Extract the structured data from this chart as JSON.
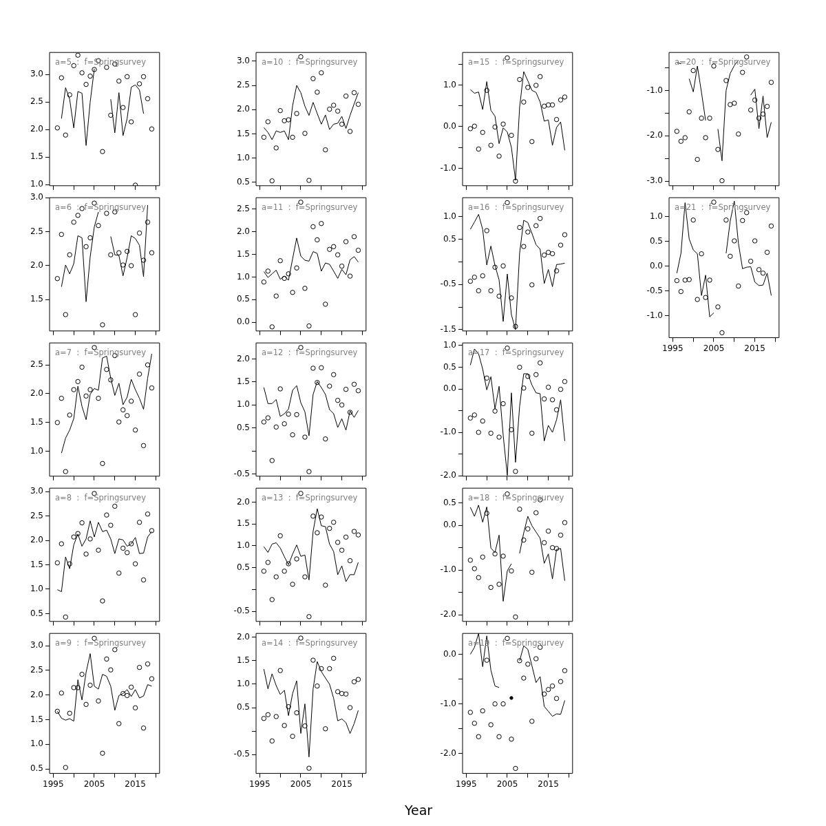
{
  "chart_data": [
    {
      "type": "scatter",
      "annotations": [
        "a=5  :  f=Springsurvey"
      ],
      "x": [
        1996,
        1997,
        1998,
        1999,
        2000,
        2001,
        2002,
        2003,
        2004,
        2005,
        2006,
        2007,
        2008,
        2009,
        2010,
        2011,
        2012,
        2013,
        2014,
        2015,
        2016,
        2017,
        2018,
        2019
      ],
      "xlim": [
        1994.1,
        2020.9
      ],
      "xticks": [
        1995,
        {
          "value": 2000,
          "label": null
        },
        2005,
        {
          "value": 2010,
          "label": null
        },
        2015,
        {
          "value": 2020,
          "label": null
        }
      ],
      "ylim": [
        0.98,
        3.4
      ],
      "yticks": [
        {
          "value": 1,
          "label": "1.0"
        },
        1.5,
        {
          "value": 2,
          "label": "2.0"
        },
        2.5,
        {
          "value": 3,
          "label": "3.0"
        }
      ],
      "tick_labels": "y",
      "marker": "circle",
      "series": [
        {
          "color": "#000000",
          "values": [
            2.03,
            2.94,
            1.9,
            2.63,
            3.16,
            3.35,
            3.03,
            2.82,
            2.97,
            3.09,
            3.25,
            1.6,
            3.13,
            2.26,
            3.19,
            2.88,
            2.4,
            2.96,
            2.14,
            0.99,
            2.83,
            2.96,
            2.56,
            2.01
          ]
        },
        {
          "type": "line",
          "color": "#000000",
          "marker": "none",
          "values": [
            null,
            2.2,
            2.76,
            2.55,
            2.03,
            2.69,
            2.66,
            1.71,
            2.5,
            3.1,
            null,
            null,
            null,
            2.55,
            1.94,
            2.67,
            1.89,
            2.2,
            2.77,
            2.81,
            2.72,
            2.29,
            null,
            null
          ]
        }
      ]
    },
    {
      "type": "scatter",
      "annotations": [
        "a=6  :  f=Springsurvey"
      ],
      "x": [
        1996,
        1997,
        1998,
        1999,
        2000,
        2001,
        2002,
        2003,
        2004,
        2005,
        2006,
        2007,
        2008,
        2009,
        2010,
        2011,
        2012,
        2013,
        2014,
        2015,
        2016,
        2017,
        2018,
        2019
      ],
      "xlim": [
        1994.1,
        2020.9
      ],
      "xticks": [
        1995,
        {
          "value": 2000,
          "label": null
        },
        2005,
        {
          "value": 2010,
          "label": null
        },
        2015,
        {
          "value": 2020,
          "label": null
        }
      ],
      "ylim": [
        1.04,
        3.0
      ],
      "yticks": [
        1.5,
        {
          "value": 2,
          "label": "2.0"
        },
        2.5,
        {
          "value": 3,
          "label": "3.0"
        }
      ],
      "tick_labels": "y",
      "marker": "circle",
      "series": [
        {
          "color": "#000000",
          "values": [
            1.81,
            2.46,
            1.28,
            2.16,
            2.64,
            2.74,
            2.84,
            2.28,
            2.41,
            2.92,
            2.59,
            1.13,
            2.77,
            2.16,
            2.79,
            2.19,
            2.01,
            2.21,
            2.0,
            1.28,
            2.48,
            2.08,
            2.64,
            2.19
          ]
        },
        {
          "type": "line",
          "color": "#000000",
          "marker": "none",
          "values": [
            null,
            1.69,
            2.01,
            1.88,
            2.03,
            2.44,
            2.41,
            1.47,
            2.13,
            2.57,
            2.79,
            null,
            null,
            2.43,
            2.16,
            2.15,
            1.85,
            2.12,
            2.44,
            2.4,
            2.3,
            1.84,
            2.89,
            null
          ]
        }
      ]
    },
    {
      "type": "scatter",
      "annotations": [
        "a=7  :  f=Springsurvey"
      ],
      "x": [
        1996,
        1997,
        1998,
        1999,
        2000,
        2001,
        2002,
        2003,
        2004,
        2005,
        2006,
        2007,
        2008,
        2009,
        2010,
        2011,
        2012,
        2013,
        2014,
        2015,
        2016,
        2017,
        2018,
        2019
      ],
      "xlim": [
        1994.1,
        2020.9
      ],
      "xticks": [
        1995,
        {
          "value": 2000,
          "label": null
        },
        2005,
        {
          "value": 2010,
          "label": null
        },
        2015,
        {
          "value": 2020,
          "label": null
        }
      ],
      "ylim": [
        0.57,
        2.88
      ],
      "yticks": [
        {
          "value": 1,
          "label": "1.0"
        },
        1.5,
        {
          "value": 2,
          "label": "2.0"
        },
        2.5
      ],
      "tick_labels": "y",
      "marker": "circle",
      "series": [
        {
          "color": "#000000",
          "values": [
            1.5,
            1.92,
            0.65,
            1.63,
            2.07,
            2.21,
            2.46,
            1.96,
            2.07,
            2.8,
            1.92,
            0.79,
            2.42,
            2.24,
            2.66,
            1.51,
            1.72,
            1.62,
            1.87,
            1.37,
            2.34,
            1.1,
            2.5,
            2.1
          ]
        },
        {
          "type": "line",
          "color": "#000000",
          "marker": "none",
          "values": [
            null,
            0.97,
            1.23,
            1.37,
            1.57,
            2.13,
            1.78,
            1.55,
            1.99,
            2.09,
            2.06,
            2.62,
            2.65,
            2.27,
            1.97,
            2.18,
            1.81,
            1.94,
            2.25,
            2.07,
            1.92,
            1.73,
            2.27,
            2.69
          ]
        }
      ]
    },
    {
      "type": "scatter",
      "annotations": [
        "a=8  :  f=Springsurvey"
      ],
      "x": [
        1996,
        1997,
        1998,
        1999,
        2000,
        2001,
        2002,
        2003,
        2004,
        2005,
        2006,
        2007,
        2008,
        2009,
        2010,
        2011,
        2012,
        2013,
        2014,
        2015,
        2016,
        2017,
        2018,
        2019
      ],
      "xlim": [
        1994.1,
        2020.9
      ],
      "xticks": [
        1995,
        {
          "value": 2000,
          "label": null
        },
        2005,
        {
          "value": 2010,
          "label": null
        },
        2015,
        {
          "value": 2020,
          "label": null
        }
      ],
      "ylim": [
        0.34,
        3.07
      ],
      "yticks": [
        0.5,
        {
          "value": 1,
          "label": "1.0"
        },
        1.5,
        {
          "value": 2,
          "label": "2.0"
        },
        2.5,
        {
          "value": 3,
          "label": "3.0"
        }
      ],
      "tick_labels": "y",
      "marker": "circle",
      "series": [
        {
          "color": "#000000",
          "values": [
            1.54,
            1.93,
            0.43,
            1.52,
            2.07,
            2.14,
            2.36,
            1.72,
            2.03,
            2.96,
            1.8,
            0.76,
            2.52,
            2.31,
            2.7,
            1.33,
            1.84,
            1.75,
            1.93,
            1.52,
            2.37,
            1.19,
            2.54,
            2.2
          ]
        },
        {
          "type": "line",
          "color": "#000000",
          "marker": "none",
          "values": [
            0.99,
            0.95,
            1.66,
            1.42,
            1.91,
            2.13,
            1.88,
            2.03,
            2.4,
            2.07,
            2.37,
            2.18,
            2.21,
            2.03,
            1.73,
            2.03,
            2.01,
            1.88,
            1.93,
            2.06,
            1.73,
            1.74,
            2.07,
            2.18
          ]
        }
      ]
    },
    {
      "type": "scatter",
      "annotations": [
        "a=9  :  f=Springsurvey"
      ],
      "x": [
        1996,
        1997,
        1998,
        1999,
        2000,
        2001,
        2002,
        2003,
        2004,
        2005,
        2006,
        2007,
        2008,
        2009,
        2010,
        2011,
        2012,
        2013,
        2014,
        2015,
        2016,
        2017,
        2018,
        2019
      ],
      "xlim": [
        1994.1,
        2020.9
      ],
      "xticks": [
        1995,
        {
          "value": 2000,
          "label": null
        },
        2005,
        {
          "value": 2010,
          "label": null
        },
        2015,
        {
          "value": 2020,
          "label": null
        }
      ],
      "ylim": [
        0.41,
        3.25
      ],
      "yticks": [
        0.5,
        {
          "value": 1,
          "label": "1.0"
        },
        1.5,
        {
          "value": 2,
          "label": "2.0"
        },
        2.5,
        {
          "value": 3,
          "label": "3.0"
        }
      ],
      "marker": "circle",
      "series": [
        {
          "color": "#000000",
          "values": [
            1.67,
            2.04,
            0.53,
            1.63,
            2.15,
            2.15,
            2.42,
            1.81,
            2.2,
            3.15,
            1.88,
            0.82,
            2.73,
            2.51,
            2.92,
            1.42,
            2.03,
            1.99,
            2.16,
            1.74,
            2.56,
            1.33,
            2.63,
            2.33
          ]
        },
        {
          "type": "line",
          "color": "#000000",
          "marker": "none",
          "values": [
            1.67,
            1.53,
            1.49,
            1.52,
            1.47,
            2.31,
            1.9,
            2.46,
            2.84,
            2.18,
            2.12,
            2.42,
            2.38,
            2.18,
            1.69,
            1.99,
            2.03,
            2.11,
            1.97,
            2.11,
            1.94,
            1.98,
            2.21,
            2.18
          ]
        }
      ]
    },
    {
      "type": "scatter",
      "annotations": [
        "a=10  :  f=Springsurvey"
      ],
      "x": [
        1996,
        1997,
        1998,
        1999,
        2000,
        2001,
        2002,
        2003,
        2004,
        2005,
        2006,
        2007,
        2008,
        2009,
        2010,
        2011,
        2012,
        2013,
        2014,
        2015,
        2016,
        2017,
        2018,
        2019
      ],
      "xlim": [
        1994.1,
        2020.9
      ],
      "xticks": [
        1995,
        {
          "value": 2000,
          "label": null
        },
        2005,
        {
          "value": 2010,
          "label": null
        },
        2015,
        {
          "value": 2020,
          "label": null
        }
      ],
      "ylim": [
        0.43,
        3.18
      ],
      "yticks": [
        0.5,
        {
          "value": 1,
          "label": "1.0"
        },
        1.5,
        {
          "value": 2,
          "label": "2.0"
        },
        2.5,
        {
          "value": 3,
          "label": "3.0"
        }
      ],
      "tick_labels": "y",
      "marker": "circle",
      "series": [
        {
          "color": "#000000",
          "values": [
            1.43,
            1.75,
            0.53,
            1.21,
            1.98,
            1.77,
            1.79,
            1.43,
            1.92,
            3.09,
            1.51,
            0.54,
            2.64,
            2.36,
            2.76,
            1.17,
            2.01,
            2.09,
            1.97,
            1.7,
            2.28,
            1.55,
            2.35,
            2.11
          ]
        },
        {
          "type": "line",
          "color": "#000000",
          "marker": "none",
          "values": [
            1.63,
            1.53,
            1.38,
            1.56,
            1.53,
            1.56,
            1.38,
            2.08,
            2.5,
            2.35,
            2.07,
            1.88,
            2.15,
            1.92,
            1.7,
            1.89,
            1.59,
            1.7,
            1.72,
            1.86,
            1.61,
            1.88,
            2.12,
            2.35
          ]
        }
      ]
    },
    {
      "type": "scatter",
      "annotations": [
        "a=11  :  f=Springsurvey"
      ],
      "x": [
        1996,
        1997,
        1998,
        1999,
        2000,
        2001,
        2002,
        2003,
        2004,
        2005,
        2006,
        2007,
        2008,
        2009,
        2010,
        2011,
        2012,
        2013,
        2014,
        2015,
        2016,
        2017,
        2018,
        2019
      ],
      "xlim": [
        1994.1,
        2020.9
      ],
      "xticks": [
        1995,
        {
          "value": 2000,
          "label": null
        },
        2005,
        {
          "value": 2010,
          "label": null
        },
        2015,
        {
          "value": 2020,
          "label": null
        }
      ],
      "ylim": [
        -0.19,
        2.75
      ],
      "yticks": [
        {
          "value": 0,
          "label": "0.0"
        },
        0.5,
        {
          "value": 1,
          "label": "1.0"
        },
        1.5,
        {
          "value": 2,
          "label": "2.0"
        },
        2.5
      ],
      "tick_labels": "y",
      "marker": "circle",
      "series": [
        {
          "color": "#000000",
          "values": [
            0.89,
            1.13,
            -0.1,
            0.58,
            1.36,
            0.97,
            1.07,
            0.66,
            1.2,
            2.65,
            0.75,
            -0.08,
            2.11,
            1.82,
            2.18,
            0.4,
            1.61,
            1.67,
            1.49,
            1.24,
            1.78,
            1.02,
            1.89,
            1.59
          ]
        },
        {
          "type": "line",
          "color": "#000000",
          "marker": "none",
          "values": [
            1.12,
            0.99,
            1.07,
            1.15,
            0.95,
            1.02,
            0.93,
            1.4,
            1.86,
            1.46,
            1.37,
            1.35,
            1.56,
            1.52,
            1.13,
            1.31,
            1.28,
            1.13,
            0.97,
            1.17,
            1.05,
            1.38,
            1.45,
            1.33
          ]
        }
      ]
    },
    {
      "type": "scatter",
      "annotations": [
        "a=12  :  f=Springsurvey"
      ],
      "x": [
        1996,
        1997,
        1998,
        1999,
        2000,
        2001,
        2002,
        2003,
        2004,
        2005,
        2006,
        2007,
        2008,
        2009,
        2010,
        2011,
        2012,
        2013,
        2014,
        2015,
        2016,
        2017,
        2018,
        2019
      ],
      "xlim": [
        1994.1,
        2020.9
      ],
      "xticks": [
        1995,
        {
          "value": 2000,
          "label": null
        },
        2005,
        {
          "value": 2010,
          "label": null
        },
        2015,
        {
          "value": 2020,
          "label": null
        }
      ],
      "ylim": [
        -0.55,
        2.35
      ],
      "yticks": [
        -0.5,
        {
          "value": 0,
          "label": null
        },
        0.5,
        {
          "value": 1,
          "label": "1.0"
        },
        1.5,
        {
          "value": 2,
          "label": "2.0"
        }
      ],
      "tick_labels": "y",
      "marker": "circle",
      "series": [
        {
          "color": "#000000",
          "values": [
            0.63,
            0.72,
            -0.21,
            0.52,
            1.35,
            0.59,
            0.8,
            0.35,
            0.79,
            2.25,
            0.3,
            -0.45,
            1.8,
            1.49,
            1.81,
            0.26,
            1.41,
            1.66,
            1.1,
            1.0,
            1.34,
            0.84,
            1.45,
            1.31
          ]
        },
        {
          "type": "line",
          "color": "#000000",
          "marker": "none",
          "values": [
            1.38,
            1.03,
            1.03,
            1.12,
            0.75,
            0.81,
            0.91,
            1.32,
            1.42,
            1.05,
            0.85,
            0.33,
            1.23,
            1.51,
            1.38,
            1.23,
            0.9,
            0.81,
            0.51,
            0.7,
            0.45,
            0.87,
            0.73,
            0.88
          ]
        }
      ]
    },
    {
      "type": "scatter",
      "annotations": [
        "a=13  :  f=Springsurvey"
      ],
      "x": [
        1996,
        1997,
        1998,
        1999,
        2000,
        2001,
        2002,
        2003,
        2004,
        2005,
        2006,
        2007,
        2008,
        2009,
        2010,
        2011,
        2012,
        2013,
        2014,
        2015,
        2016,
        2017,
        2018,
        2019
      ],
      "xlim": [
        1994.1,
        2020.9
      ],
      "xticks": [
        1995,
        {
          "value": 2000,
          "label": null
        },
        2005,
        {
          "value": 2010,
          "label": null
        },
        2015,
        {
          "value": 2020,
          "label": null
        }
      ],
      "ylim": [
        -0.73,
        2.32
      ],
      "yticks": [
        -0.5,
        {
          "value": 0,
          "label": null
        },
        0.5,
        {
          "value": 1,
          "label": "1.0"
        },
        1.5,
        {
          "value": 2,
          "label": "2.0"
        }
      ],
      "tick_labels": "y",
      "marker": "circle",
      "series": [
        {
          "color": "#000000",
          "values": [
            0.42,
            0.62,
            -0.23,
            0.29,
            1.23,
            0.42,
            0.59,
            0.12,
            0.7,
            2.2,
            0.29,
            -0.62,
            1.68,
            1.3,
            1.66,
            0.1,
            1.4,
            1.54,
            1.08,
            0.9,
            1.2,
            0.66,
            1.33,
            1.25
          ]
        },
        {
          "type": "line",
          "color": "#000000",
          "marker": "none",
          "values": [
            0.98,
            0.85,
            1.04,
            1.07,
            0.95,
            0.75,
            0.57,
            0.81,
            1.02,
            0.76,
            0.79,
            0.22,
            1.33,
            1.85,
            1.46,
            1.44,
            1.04,
            0.87,
            0.34,
            0.54,
            0.18,
            0.34,
            0.34,
            0.62
          ]
        }
      ]
    },
    {
      "type": "scatter",
      "annotations": [
        "a=14  :  f=Springsurvey"
      ],
      "xlabel": "Year",
      "x": [
        1996,
        1997,
        1998,
        1999,
        2000,
        2001,
        2002,
        2003,
        2004,
        2005,
        2006,
        2007,
        2008,
        2009,
        2010,
        2011,
        2012,
        2013,
        2014,
        2015,
        2016,
        2017,
        2018,
        2019
      ],
      "xlim": [
        1994.1,
        2020.9
      ],
      "xticks": [
        1995,
        {
          "value": 2000,
          "label": null
        },
        2005,
        {
          "value": 2010,
          "label": null
        },
        2015,
        {
          "value": 2020,
          "label": null
        }
      ],
      "ylim": [
        -0.9,
        2.08
      ],
      "yticks": [
        -0.5,
        {
          "value": 0,
          "label": null
        },
        0.5,
        {
          "value": 1,
          "label": "1.0"
        },
        1.5,
        {
          "value": 2,
          "label": "2.0"
        }
      ],
      "marker": "circle",
      "series": [
        {
          "color": "#000000",
          "values": [
            0.27,
            0.35,
            -0.21,
            0.31,
            1.29,
            0.12,
            0.52,
            -0.11,
            0.39,
            1.98,
            0.11,
            -0.79,
            1.51,
            0.96,
            1.33,
            0.05,
            1.33,
            1.55,
            0.84,
            0.8,
            0.79,
            0.5,
            1.05,
            1.1
          ]
        },
        {
          "type": "line",
          "color": "#000000",
          "marker": "none",
          "values": [
            1.32,
            0.9,
            1.22,
            0.97,
            0.78,
            0.87,
            0.33,
            0.8,
            1.07,
            -0.05,
            0.58,
            -0.55,
            0.9,
            1.48,
            1.27,
            1.13,
            1.0,
            0.7,
            0.22,
            0.26,
            0.18,
            -0.05,
            0.16,
            0.44
          ]
        }
      ]
    },
    {
      "type": "scatter",
      "annotations": [
        "a=15  :  f=Springsurvey"
      ],
      "x": [
        1996,
        1997,
        1998,
        1999,
        2000,
        2001,
        2002,
        2003,
        2004,
        2005,
        2006,
        2007,
        2008,
        2009,
        2010,
        2011,
        2012,
        2013,
        2014,
        2015,
        2016,
        2017,
        2018,
        2019
      ],
      "xlim": [
        1994.1,
        2020.9
      ],
      "xticks": [
        1995,
        {
          "value": 2000,
          "label": null
        },
        2005,
        {
          "value": 2010,
          "label": null
        },
        2015,
        {
          "value": 2020,
          "label": null
        }
      ],
      "ylim": [
        -1.42,
        1.78
      ],
      "yticks": [
        {
          "value": -1,
          "label": "-1.0"
        },
        {
          "value": -0.5,
          "label": null
        },
        {
          "value": 0,
          "label": "0.0"
        },
        {
          "value": 0.5,
          "label": null
        },
        {
          "value": 1,
          "label": "1.0"
        },
        {
          "value": 1.5,
          "label": null
        }
      ],
      "tick_labels": "y",
      "marker": "circle",
      "series": [
        {
          "color": "#000000",
          "values": [
            -0.05,
            0.01,
            -0.54,
            -0.14,
            0.87,
            -0.45,
            -0.01,
            -0.71,
            0.06,
            1.65,
            -0.21,
            -1.31,
            1.13,
            0.59,
            0.94,
            -0.36,
            0.99,
            1.2,
            0.49,
            0.52,
            0.52,
            0.17,
            0.64,
            0.71
          ]
        },
        {
          "type": "line",
          "color": "#000000",
          "marker": "none",
          "values": [
            0.89,
            0.8,
            0.83,
            0.41,
            1.08,
            0.39,
            0.25,
            -0.41,
            -0.03,
            -0.13,
            -0.5,
            -1.29,
            0.46,
            1.32,
            1.1,
            0.87,
            0.82,
            0.59,
            0.13,
            0.16,
            -0.45,
            -0.02,
            0.11,
            -0.57
          ]
        }
      ]
    },
    {
      "type": "scatter",
      "annotations": [
        "a=16  :  f=Springsurvey"
      ],
      "x": [
        1996,
        1997,
        1998,
        1999,
        2000,
        2001,
        2002,
        2003,
        2004,
        2005,
        2006,
        2007,
        2008,
        2009,
        2010,
        2011,
        2012,
        2013,
        2014,
        2015,
        2016,
        2017,
        2018,
        2019
      ],
      "xlim": [
        1994.1,
        2020.9
      ],
      "xticks": [
        1995,
        {
          "value": 2000,
          "label": null
        },
        2005,
        {
          "value": 2010,
          "label": null
        },
        2015,
        {
          "value": 2020,
          "label": null
        }
      ],
      "ylim": [
        -1.53,
        1.42
      ],
      "yticks": [
        -1.5,
        {
          "value": -1,
          "label": null
        },
        -0.5,
        {
          "value": 0,
          "label": null
        },
        0.5,
        {
          "value": 1,
          "label": "1.0"
        }
      ],
      "tick_labels": "y",
      "marker": "circle",
      "series": [
        {
          "color": "#000000",
          "values": [
            -0.43,
            -0.34,
            -0.64,
            -0.31,
            0.69,
            -0.64,
            -0.12,
            -0.76,
            -0.09,
            1.31,
            -0.8,
            -1.43,
            0.76,
            0.34,
            0.66,
            -0.51,
            0.8,
            0.96,
            0.15,
            0.21,
            0.18,
            -0.2,
            0.37,
            0.6
          ]
        },
        {
          "type": "line",
          "color": "#000000",
          "marker": "none",
          "values": [
            0.72,
            0.88,
            1.05,
            0.72,
            -0.07,
            0.35,
            -0.08,
            -0.4,
            -1.32,
            -0.27,
            -1.17,
            -1.5,
            0.19,
            0.92,
            0.87,
            0.63,
            0.38,
            0.28,
            -0.48,
            -0.17,
            -0.55,
            -0.06,
            -0.05,
            -0.03
          ]
        }
      ]
    },
    {
      "type": "scatter",
      "annotations": [
        "a=17  :  f=Springsurvey"
      ],
      "x": [
        1996,
        1997,
        1998,
        1999,
        2000,
        2001,
        2002,
        2003,
        2004,
        2005,
        2006,
        2007,
        2008,
        2009,
        2010,
        2011,
        2012,
        2013,
        2014,
        2015,
        2016,
        2017,
        2018,
        2019
      ],
      "xlim": [
        1994.1,
        2020.9
      ],
      "xticks": [
        1995,
        {
          "value": 2000,
          "label": null
        },
        2005,
        {
          "value": 2010,
          "label": null
        },
        2015,
        {
          "value": 2020,
          "label": null
        }
      ],
      "ylim": [
        -2.01,
        1.06
      ],
      "yticks": [
        {
          "value": -2,
          "label": "-2.0"
        },
        {
          "value": -1.5,
          "label": null
        },
        {
          "value": -1,
          "label": "-1.0"
        },
        {
          "value": -0.5,
          "label": null
        },
        {
          "value": 0,
          "label": "0.0"
        },
        0.5,
        {
          "value": 1,
          "label": "1.0"
        }
      ],
      "tick_labels": "y",
      "marker": "circle",
      "series": [
        {
          "color": "#000000",
          "values": [
            -0.67,
            -0.6,
            -1.0,
            -0.74,
            0.25,
            -1.02,
            -0.51,
            -1.11,
            -0.34,
            0.94,
            -0.94,
            -1.9,
            0.5,
            0.02,
            0.29,
            -1.02,
            0.33,
            0.6,
            -0.23,
            0.04,
            -0.25,
            -0.48,
            -0.01,
            0.17
          ]
        },
        {
          "type": "line",
          "color": "#000000",
          "marker": "none",
          "values": [
            0.55,
            0.92,
            0.81,
            0.46,
            -0.02,
            0.28,
            -0.46,
            0.06,
            -1.07,
            -1.99,
            -0.09,
            -1.69,
            -0.4,
            0.35,
            0.35,
            0.09,
            -0.09,
            -0.11,
            -1.2,
            -0.84,
            -1.0,
            -0.71,
            -0.25,
            -1.2
          ]
        }
      ]
    },
    {
      "type": "scatter",
      "annotations": [
        "a=18  :  f=Springsurvey"
      ],
      "x": [
        1996,
        1997,
        1998,
        1999,
        2000,
        2001,
        2002,
        2003,
        2004,
        2005,
        2006,
        2007,
        2008,
        2009,
        2010,
        2011,
        2012,
        2013,
        2014,
        2015,
        2016,
        2017,
        2018,
        2019
      ],
      "xlim": [
        1994.1,
        2020.9
      ],
      "xticks": [
        1995,
        {
          "value": 2000,
          "label": null
        },
        2005,
        {
          "value": 2010,
          "label": null
        },
        2015,
        {
          "value": 2020,
          "label": null
        }
      ],
      "ylim": [
        -2.15,
        0.83
      ],
      "yticks": [
        {
          "value": -2,
          "label": "-2.0"
        },
        {
          "value": -1.5,
          "label": null
        },
        {
          "value": -1,
          "label": "-1.0"
        },
        {
          "value": -0.5,
          "label": null
        },
        {
          "value": 0,
          "label": "0.0"
        },
        0.5
      ],
      "tick_labels": "y",
      "marker": "circle",
      "series": [
        {
          "color": "#000000",
          "values": [
            -0.78,
            -0.97,
            -1.17,
            -0.71,
            0.27,
            -1.39,
            -0.64,
            -1.32,
            -0.69,
            0.7,
            -1.02,
            -2.05,
            0.36,
            -0.33,
            -0.08,
            -1.05,
            0.28,
            0.57,
            -0.39,
            -0.13,
            -0.5,
            -0.52,
            -0.22,
            0.06
          ]
        },
        {
          "type": "line",
          "color": "#000000",
          "marker": "none",
          "values": [
            0.4,
            0.2,
            0.45,
            0.07,
            0.41,
            -0.51,
            -0.61,
            -0.22,
            -1.7,
            -1.02,
            -0.86,
            null,
            -0.63,
            -0.17,
            0.2,
            -0.01,
            -0.15,
            -0.29,
            -0.85,
            -0.64,
            -1.2,
            -0.54,
            -0.52,
            -1.24
          ]
        }
      ]
    },
    {
      "type": "scatter",
      "annotations": [
        "a=19  :  f=Springsurvey"
      ],
      "x": [
        1996,
        1997,
        1998,
        1999,
        2000,
        2001,
        2002,
        2003,
        2004,
        2005,
        2006,
        2007,
        2008,
        2009,
        2010,
        2011,
        2012,
        2013,
        2014,
        2015,
        2016,
        2017,
        2018,
        2019
      ],
      "xlim": [
        1994.1,
        2020.9
      ],
      "xticks": [
        1995,
        {
          "value": 2000,
          "label": null
        },
        2005,
        {
          "value": 2010,
          "label": null
        },
        2015,
        {
          "value": 2020,
          "label": null
        }
      ],
      "ylim": [
        -2.4,
        0.42
      ],
      "yticks": [
        {
          "value": -2,
          "label": "-2.0"
        },
        {
          "value": -1.5,
          "label": null
        },
        {
          "value": -1,
          "label": "-1.0"
        },
        {
          "value": -0.5,
          "label": null
        },
        {
          "value": 0,
          "label": "0.0"
        }
      ],
      "marker": "circle",
      "series": [
        {
          "color": "#000000",
          "values": [
            -1.17,
            -1.39,
            -1.66,
            -1.14,
            -0.12,
            -1.42,
            -1.0,
            -1.66,
            -1.0,
            0.32,
            -1.71,
            -2.3,
            -0.13,
            -0.48,
            -0.2,
            -1.35,
            -0.09,
            0.14,
            -0.8,
            -0.71,
            -0.64,
            -0.89,
            -0.55,
            -0.33
          ]
        },
        {
          "type": "line",
          "color": "#000000",
          "marker": "none",
          "values": [
            0.0,
            0.14,
            0.42,
            -0.25,
            0.37,
            -0.32,
            -0.64,
            -0.67,
            null,
            null,
            -0.88,
            null,
            -0.13,
            0.17,
            0.1,
            -0.23,
            -0.57,
            -0.45,
            -1.05,
            -1.15,
            -1.25,
            -1.2,
            -1.21,
            -0.93
          ]
        }
      ]
    },
    {
      "type": "scatter",
      "annotations": [
        "a=20  :  f=Springsurvey"
      ],
      "x": [
        1996,
        1997,
        1998,
        1999,
        2000,
        2001,
        2002,
        2003,
        2004,
        2005,
        2006,
        2007,
        2008,
        2009,
        2010,
        2011,
        2012,
        2013,
        2014,
        2015,
        2016,
        2017,
        2018,
        2019
      ],
      "xlim": [
        1994.1,
        2020.9
      ],
      "xticks": [
        1995,
        {
          "value": 2000,
          "label": null
        },
        2005,
        {
          "value": 2010,
          "label": null
        },
        2015,
        {
          "value": 2020,
          "label": null
        }
      ],
      "ylim": [
        -3.1,
        -0.16
      ],
      "yticks": [
        {
          "value": -3,
          "label": "-3.0"
        },
        {
          "value": -2.5,
          "label": null
        },
        {
          "value": -2,
          "label": "-2.0"
        },
        {
          "value": -1.5,
          "label": null
        },
        {
          "value": -1,
          "label": "-1.0"
        },
        {
          "value": -0.5,
          "label": null
        }
      ],
      "tick_labels": "y",
      "marker": "circle",
      "series": [
        {
          "color": "#000000",
          "values": [
            -1.9,
            -2.12,
            -2.04,
            -1.47,
            -0.56,
            -2.52,
            -1.61,
            -2.04,
            -1.61,
            -0.46,
            -2.3,
            -2.99,
            -0.78,
            -1.31,
            -1.28,
            -1.96,
            -0.6,
            -0.26,
            -1.43,
            -1.21,
            -1.61,
            -1.52,
            -1.35,
            -0.82
          ]
        },
        {
          "type": "line",
          "color": "#000000",
          "marker": "none",
          "values": [
            -0.38,
            -0.41,
            null,
            -0.74,
            -1.03,
            -0.46,
            -1.04,
            -1.66,
            null,
            null,
            -1.85,
            -2.55,
            -1.0,
            -0.62,
            -0.45,
            -0.33,
            null,
            null,
            -1.1,
            -0.97,
            -1.84,
            -1.12,
            -2.04,
            -1.7
          ]
        }
      ]
    },
    {
      "type": "scatter",
      "annotations": [
        "a=21  :  f=Springsurvey"
      ],
      "x": [
        1996,
        1997,
        1998,
        1999,
        2000,
        2001,
        2002,
        2003,
        2004,
        2005,
        2006,
        2007,
        2008,
        2009,
        2010,
        2011,
        2012,
        2013,
        2014,
        2015,
        2016,
        2017,
        2018,
        2019
      ],
      "xlim": [
        1994.1,
        2020.9
      ],
      "xticks": [
        1995,
        {
          "value": 2000,
          "label": null
        },
        2005,
        {
          "value": 2010,
          "label": null
        },
        2015,
        {
          "value": 2020,
          "label": null
        }
      ],
      "ylim": [
        -1.44,
        1.38
      ],
      "yticks": [
        {
          "value": -1,
          "label": "-1.0"
        },
        -0.5,
        {
          "value": 0,
          "label": "0.0"
        },
        0.5,
        {
          "value": 1,
          "label": "1.0"
        }
      ],
      "marker": "circle",
      "series": [
        {
          "color": "#000000",
          "values": [
            -0.29,
            -0.51,
            -0.28,
            -0.27,
            0.93,
            -0.67,
            0.25,
            -0.63,
            -0.28,
            1.29,
            -0.82,
            -1.34,
            0.93,
            0.2,
            0.51,
            -0.4,
            0.92,
            1.08,
            0.1,
            0.51,
            -0.07,
            -0.14,
            0.28,
            0.81
          ]
        },
        {
          "type": "line",
          "color": "#000000",
          "marker": "none",
          "values": [
            -0.14,
            0.26,
            1.28,
            0.55,
            0.33,
            0.25,
            -0.59,
            -0.18,
            -1.02,
            -0.94,
            null,
            null,
            0.26,
            0.91,
            1.31,
            0.46,
            -0.05,
            -0.02,
            -0.01,
            -0.32,
            -0.39,
            -0.38,
            -0.14,
            -0.59
          ]
        }
      ]
    }
  ]
}
